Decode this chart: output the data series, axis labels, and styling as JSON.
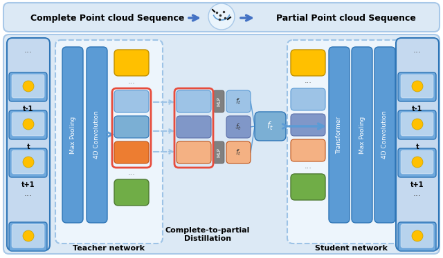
{
  "title_left": "Complete Point cloud Sequence",
  "title_right": "Partial Point cloud Sequence",
  "label_teacher": "Teacher network",
  "label_student": "Student network",
  "label_distill": "Complete-to-partial\nDistillation",
  "label_4dconv_t": "4D Convolution",
  "label_maxpool_t": "Max Pooling",
  "label_transformer": "Transformer",
  "label_maxpool_s": "Max Pooling",
  "label_4dconv_s": "4D Convolution",
  "bg_white": "#ffffff",
  "box_blue_dark": "#5b9bd5",
  "box_blue_col": "#5b9bd5",
  "box_blue_light": "#9dc3e6",
  "box_blue_mid": "#7bafd4",
  "box_blue_purple": "#8097c8",
  "box_orange": "#ED7D31",
  "box_orange_light": "#f4b183",
  "box_yellow": "#FFC000",
  "box_green": "#70AD47",
  "box_gray": "#808080",
  "arrow_color": "#4472C4",
  "dashed_color": "#9dc3e6",
  "top_bg": "#dce9f5",
  "bottom_bg": "#dce9f5",
  "frame_color": "#4472C4",
  "red_frame": "#e74c3c",
  "img_bg": "#6fa8dc",
  "img_border": "#2e75b6",
  "teacher_inner_bg": "#e8f2fb",
  "student_inner_bg": "#e8f2fb"
}
